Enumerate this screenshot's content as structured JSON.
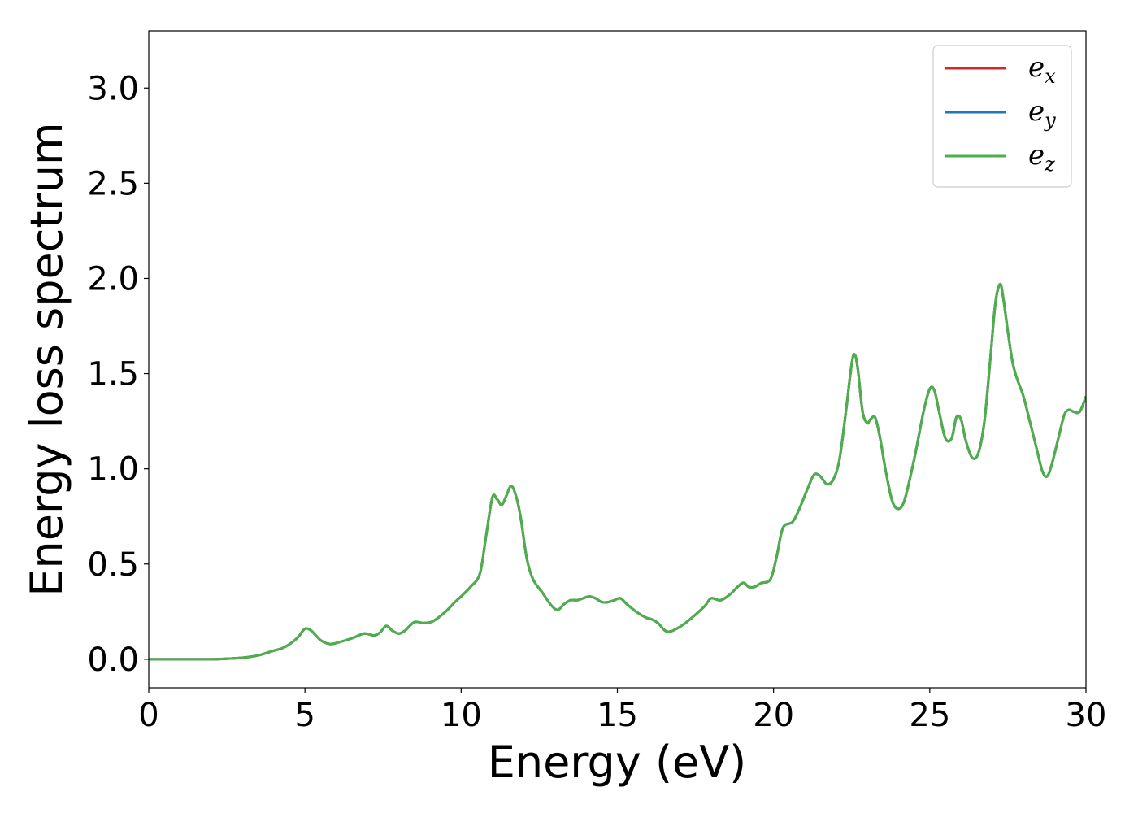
{
  "chart_data": {
    "type": "line",
    "title": "",
    "xlabel": "Energy (eV)",
    "ylabel": "Energy loss spectrum",
    "xlim": [
      0,
      30
    ],
    "ylim": [
      -0.15,
      3.3
    ],
    "xticks": [
      0,
      5,
      10,
      15,
      20,
      25,
      30
    ],
    "xtick_labels": [
      "0",
      "5",
      "10",
      "15",
      "20",
      "25",
      "30"
    ],
    "yticks": [
      0.0,
      0.5,
      1.0,
      1.5,
      2.0,
      2.5,
      3.0
    ],
    "ytick_labels": [
      "0.0",
      "0.5",
      "1.0",
      "1.5",
      "2.0",
      "2.5",
      "3.0"
    ],
    "grid": false,
    "legend_position": "top-right",
    "x": [
      0,
      1,
      2,
      2.5,
      3,
      3.5,
      4,
      4.3,
      4.6,
      4.8,
      5.0,
      5.2,
      5.5,
      5.8,
      6.1,
      6.5,
      6.9,
      7.2,
      7.4,
      7.6,
      7.8,
      8.0,
      8.2,
      8.5,
      8.8,
      9.1,
      9.5,
      9.8,
      10.0,
      10.3,
      10.6,
      10.8,
      11.0,
      11.15,
      11.3,
      11.45,
      11.6,
      11.75,
      11.9,
      12.1,
      12.3,
      12.6,
      12.9,
      13.1,
      13.3,
      13.5,
      13.7,
      13.9,
      14.1,
      14.3,
      14.5,
      14.7,
      14.9,
      15.1,
      15.3,
      15.6,
      15.9,
      16.1,
      16.3,
      16.6,
      17.0,
      17.4,
      17.8,
      18.0,
      18.3,
      18.6,
      19.0,
      19.2,
      19.4,
      19.6,
      19.9,
      20.1,
      20.3,
      20.6,
      20.8,
      21.1,
      21.3,
      21.5,
      21.7,
      21.9,
      22.1,
      22.3,
      22.5,
      22.6,
      22.7,
      22.85,
      23.0,
      23.1,
      23.25,
      23.4,
      23.6,
      23.8,
      24.0,
      24.2,
      24.5,
      24.8,
      25.0,
      25.15,
      25.3,
      25.5,
      25.7,
      25.85,
      26.0,
      26.15,
      26.35,
      26.55,
      26.75,
      26.95,
      27.1,
      27.25,
      27.35,
      27.5,
      27.65,
      27.8,
      28.0,
      28.2,
      28.4,
      28.6,
      28.75,
      28.9,
      29.1,
      29.3,
      29.45,
      29.6,
      29.8,
      30.0
    ],
    "y": [
      0.0,
      0.0,
      0.0,
      0.003,
      0.008,
      0.02,
      0.045,
      0.06,
      0.09,
      0.12,
      0.16,
      0.15,
      0.1,
      0.08,
      0.09,
      0.11,
      0.135,
      0.125,
      0.14,
      0.175,
      0.15,
      0.135,
      0.15,
      0.195,
      0.19,
      0.2,
      0.25,
      0.3,
      0.33,
      0.38,
      0.45,
      0.65,
      0.85,
      0.84,
      0.81,
      0.86,
      0.91,
      0.86,
      0.75,
      0.53,
      0.42,
      0.35,
      0.28,
      0.26,
      0.29,
      0.31,
      0.31,
      0.32,
      0.33,
      0.32,
      0.3,
      0.3,
      0.31,
      0.32,
      0.29,
      0.25,
      0.22,
      0.21,
      0.19,
      0.145,
      0.17,
      0.22,
      0.28,
      0.32,
      0.31,
      0.34,
      0.4,
      0.38,
      0.38,
      0.4,
      0.42,
      0.54,
      0.69,
      0.72,
      0.78,
      0.9,
      0.97,
      0.96,
      0.92,
      0.94,
      1.04,
      1.28,
      1.55,
      1.6,
      1.52,
      1.3,
      1.24,
      1.26,
      1.27,
      1.17,
      0.98,
      0.83,
      0.79,
      0.84,
      1.05,
      1.3,
      1.42,
      1.41,
      1.3,
      1.16,
      1.16,
      1.27,
      1.26,
      1.15,
      1.06,
      1.08,
      1.25,
      1.6,
      1.87,
      1.97,
      1.9,
      1.72,
      1.56,
      1.47,
      1.38,
      1.25,
      1.12,
      0.99,
      0.96,
      1.02,
      1.15,
      1.28,
      1.31,
      1.3,
      1.3,
      1.38
    ],
    "series": [
      {
        "name": "e_x",
        "legend_main": "e",
        "legend_sub": "x",
        "color": "#d62728"
      },
      {
        "name": "e_y",
        "legend_main": "e",
        "legend_sub": "y",
        "color": "#1f77b4"
      },
      {
        "name": "e_z",
        "legend_main": "e",
        "legend_sub": "z",
        "color": "#4daf4a"
      }
    ]
  }
}
